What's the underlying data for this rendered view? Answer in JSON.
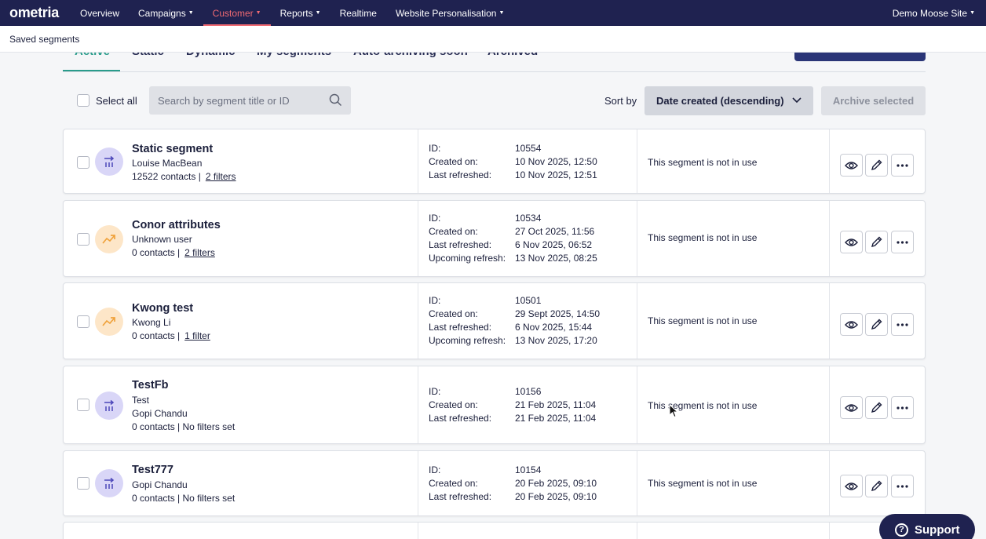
{
  "nav": {
    "logo": "ometria",
    "items": [
      {
        "label": "Overview",
        "dropdown": false,
        "active": false
      },
      {
        "label": "Campaigns",
        "dropdown": true,
        "active": false
      },
      {
        "label": "Customer",
        "dropdown": true,
        "active": true
      },
      {
        "label": "Reports",
        "dropdown": true,
        "active": false
      },
      {
        "label": "Realtime",
        "dropdown": false,
        "active": false
      },
      {
        "label": "Website Personalisation",
        "dropdown": true,
        "active": false
      }
    ],
    "site": "Demo Moose Site"
  },
  "page_title": "Saved segments",
  "tabs": [
    {
      "label": "Active",
      "active": true
    },
    {
      "label": "Static",
      "active": false
    },
    {
      "label": "Dynamic",
      "active": false
    },
    {
      "label": "My segments",
      "active": false
    },
    {
      "label": "Auto-archiving soon",
      "active": false
    },
    {
      "label": "Archived",
      "active": false
    }
  ],
  "toolbar": {
    "select_all": "Select all",
    "search_placeholder": "Search by segment title or ID",
    "sort_label": "Sort by",
    "sort_value": "Date created (descending)",
    "archive_button": "Archive selected"
  },
  "segments": [
    {
      "type": "static",
      "title": "Static segment",
      "sub_lines": [
        "Louise MacBean"
      ],
      "contacts": "12522 contacts |",
      "filters": "2 filters",
      "meta": [
        [
          "ID:",
          "10554"
        ],
        [
          "Created on:",
          "10 Nov 2025, 12:50"
        ],
        [
          "Last refreshed:",
          "10 Nov 2025, 12:51"
        ]
      ],
      "usage": "This segment is not in use"
    },
    {
      "type": "dynamic",
      "title": "Conor attributes",
      "sub_lines": [
        "Unknown user"
      ],
      "contacts": "0 contacts |",
      "filters": "2 filters",
      "meta": [
        [
          "ID:",
          "10534"
        ],
        [
          "Created on:",
          "27 Oct 2025, 11:56"
        ],
        [
          "Last refreshed:",
          "6 Nov 2025, 06:52"
        ],
        [
          "Upcoming refresh:",
          "13 Nov 2025, 08:25"
        ]
      ],
      "usage": "This segment is not in use"
    },
    {
      "type": "dynamic",
      "title": "Kwong test",
      "sub_lines": [
        "Kwong Li"
      ],
      "contacts": "0 contacts |",
      "filters": "1 filter",
      "meta": [
        [
          "ID:",
          "10501"
        ],
        [
          "Created on:",
          "29 Sept 2025, 14:50"
        ],
        [
          "Last refreshed:",
          "6 Nov 2025, 15:44"
        ],
        [
          "Upcoming refresh:",
          "13 Nov 2025, 17:20"
        ]
      ],
      "usage": "This segment is not in use"
    },
    {
      "type": "static",
      "title": "TestFb",
      "sub_lines": [
        "Test",
        "Gopi Chandu"
      ],
      "contacts": "0 contacts | No filters set",
      "filters": "",
      "meta": [
        [
          "ID:",
          "10156"
        ],
        [
          "Created on:",
          "21 Feb 2025, 11:04"
        ],
        [
          "Last refreshed:",
          "21 Feb 2025, 11:04"
        ]
      ],
      "usage": "This segment is not in use"
    },
    {
      "type": "static",
      "title": "Test777",
      "sub_lines": [
        "Gopi Chandu"
      ],
      "contacts": "0 contacts | No filters set",
      "filters": "",
      "meta": [
        [
          "ID:",
          "10154"
        ],
        [
          "Created on:",
          "20 Feb 2025, 09:10"
        ],
        [
          "Last refreshed:",
          "20 Feb 2025, 09:10"
        ]
      ],
      "usage": "This segment is not in use"
    }
  ],
  "support_label": "Support",
  "colors": {
    "nav_bg": "#1f2250",
    "active_nav": "#f06a72",
    "active_tab": "#2a9c8b",
    "static_icon_bg": "#d9d6f7",
    "dynamic_icon_bg": "#fde6c8"
  }
}
